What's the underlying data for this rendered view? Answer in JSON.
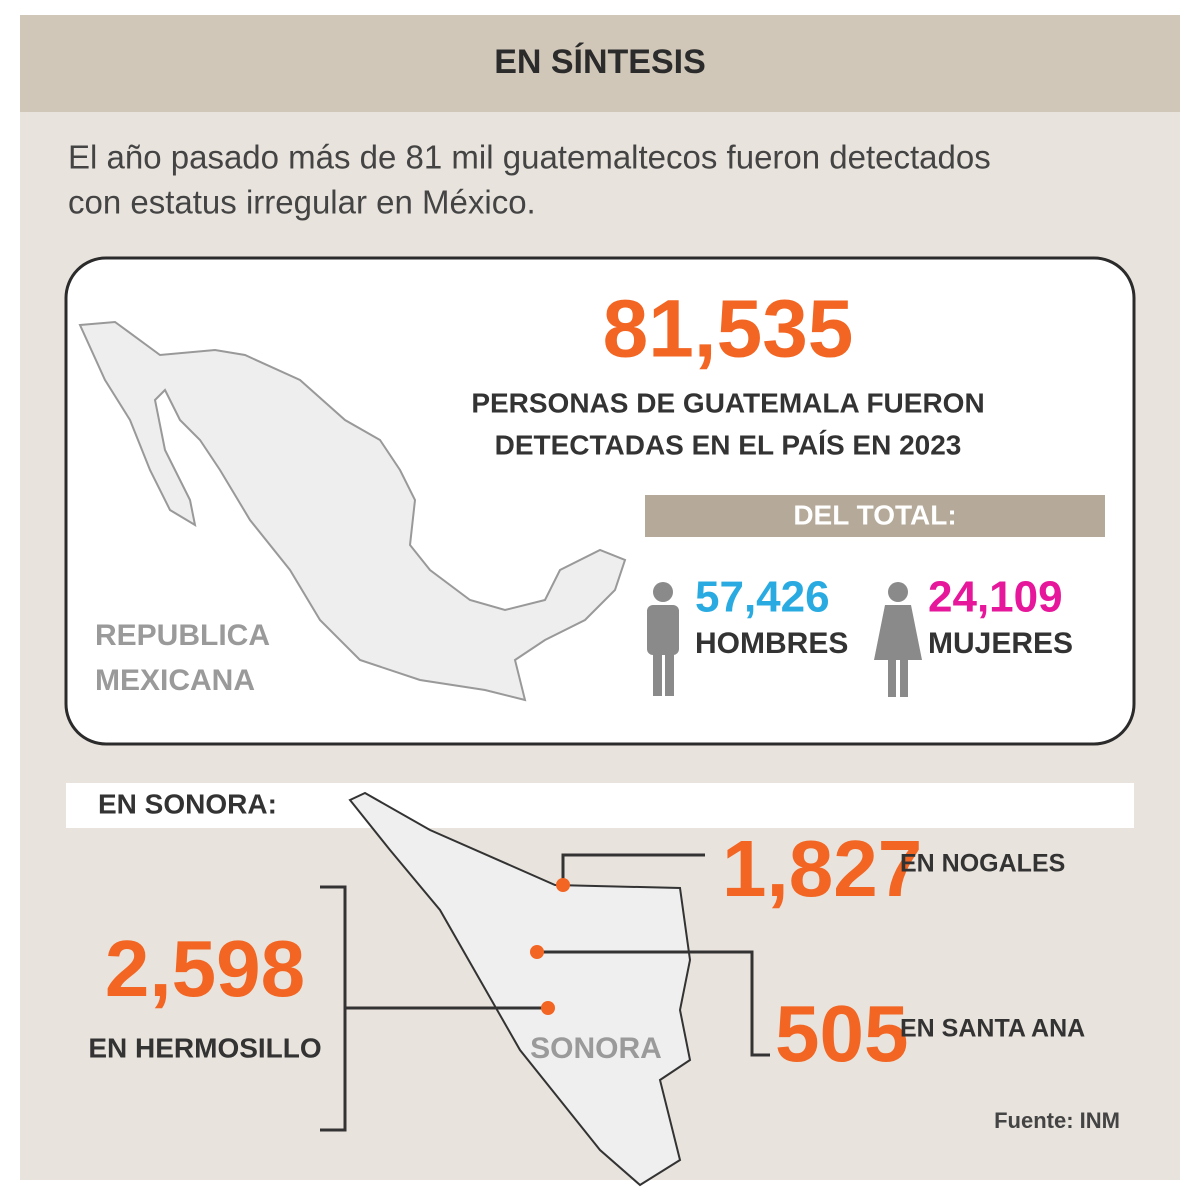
{
  "header": {
    "title": "EN SÍNTESIS"
  },
  "intro": [
    "El año pasado más de 81 mil guatemaltecos fueron detectados",
    "con estatus irregular en México."
  ],
  "national": {
    "total": "81,535",
    "description": [
      "PERSONAS DE GUATEMALA FUERON",
      "DETECTADAS EN EL PAÍS EN 2023"
    ],
    "breakdown_label": "DEL TOTAL:",
    "men": {
      "value": "57,426",
      "label": "HOMBRES"
    },
    "women": {
      "value": "24,109",
      "label": "MUJERES"
    },
    "map_label": [
      "REPUBLICA",
      "MEXICANA"
    ]
  },
  "sonora": {
    "title": "EN SONORA:",
    "map_label": "SONORA",
    "cities": [
      {
        "value": "1,827",
        "label": "EN NOGALES"
      },
      {
        "value": "505",
        "label": "EN SANTA ANA"
      },
      {
        "value": "2,598",
        "label": "EN HERMOSILLO"
      }
    ]
  },
  "source": "Fuente: INM"
}
